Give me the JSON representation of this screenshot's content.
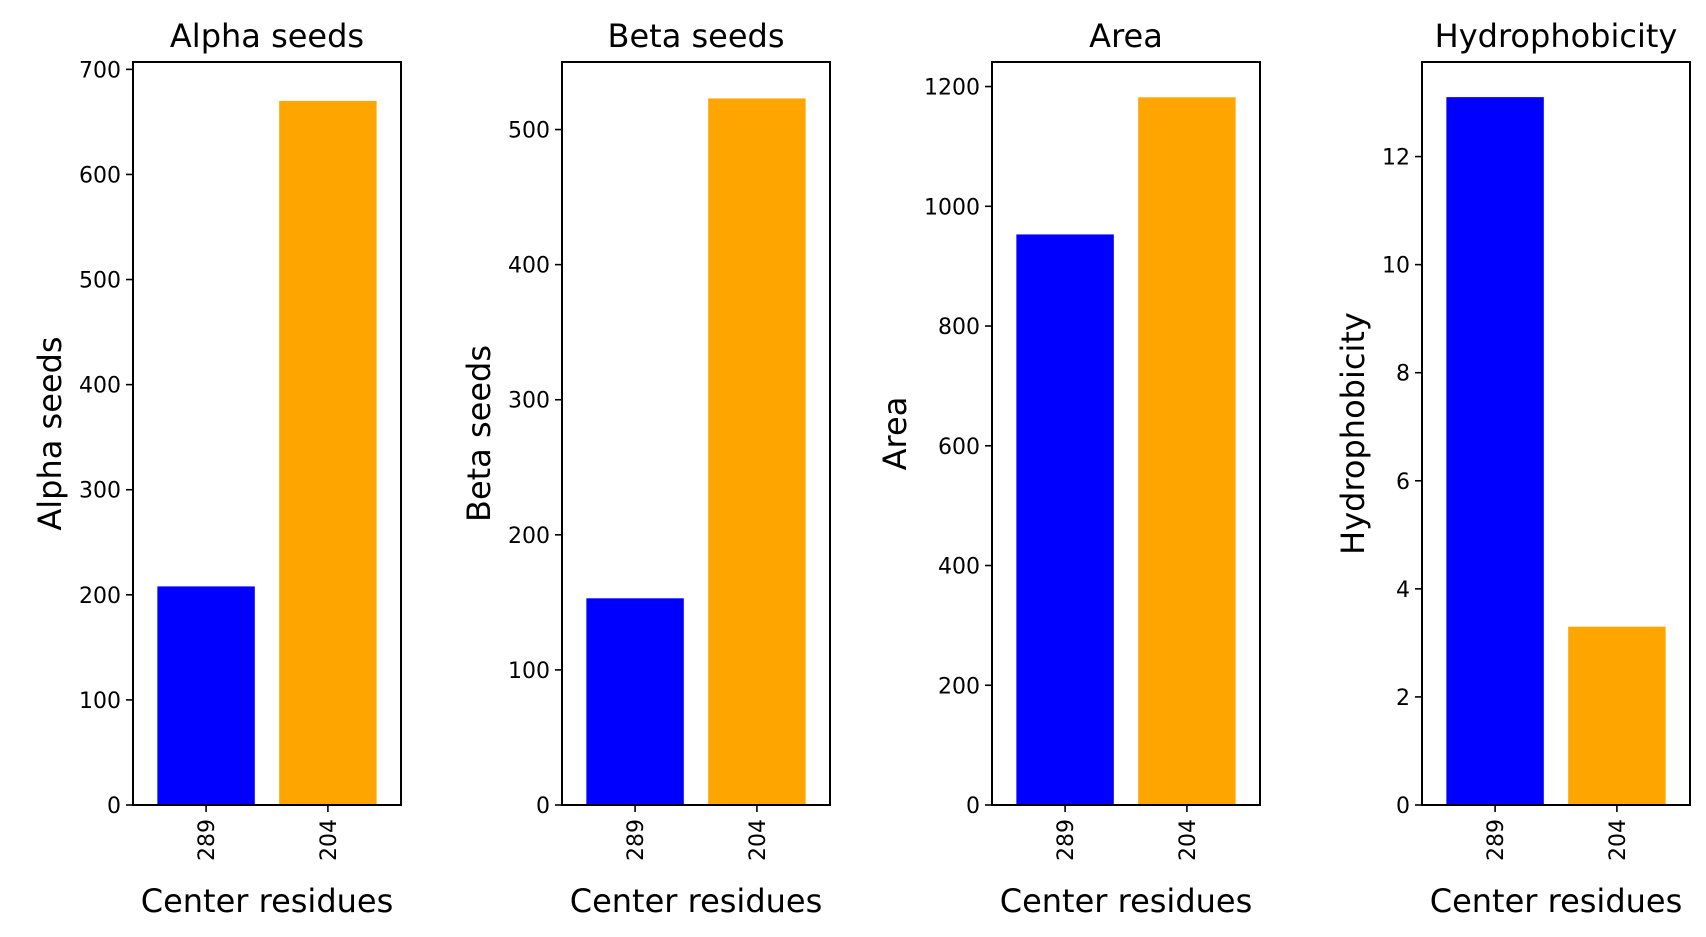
{
  "chart_data": [
    {
      "type": "bar",
      "title": "Alpha seeds",
      "xlabel": "Center residues",
      "ylabel": "Alpha seeds",
      "categories": [
        "289",
        "204"
      ],
      "values": [
        208,
        670
      ],
      "ylim": [
        0,
        707
      ],
      "yticks": [
        0,
        100,
        200,
        300,
        400,
        500,
        600,
        700
      ],
      "bar_colors": [
        "#0000ff",
        "#ffa500"
      ],
      "grid": false
    },
    {
      "type": "bar",
      "title": "Beta seeds",
      "xlabel": "Center residues",
      "ylabel": "Beta seeds",
      "categories": [
        "289",
        "204"
      ],
      "values": [
        153,
        523
      ],
      "ylim": [
        0,
        550
      ],
      "yticks": [
        0,
        100,
        200,
        300,
        400,
        500
      ],
      "bar_colors": [
        "#0000ff",
        "#ffa500"
      ],
      "grid": false
    },
    {
      "type": "bar",
      "title": "Area",
      "xlabel": "Center residues",
      "ylabel": "Area",
      "categories": [
        "289",
        "204"
      ],
      "values": [
        953,
        1182
      ],
      "ylim": [
        0,
        1241
      ],
      "yticks": [
        0,
        200,
        400,
        600,
        800,
        1000,
        1200
      ],
      "bar_colors": [
        "#0000ff",
        "#ffa500"
      ],
      "grid": false
    },
    {
      "type": "bar",
      "title": "Hydrophobicity",
      "xlabel": "Center residues",
      "ylabel": "Hydrophobicity",
      "categories": [
        "289",
        "204"
      ],
      "values": [
        13.1,
        3.3
      ],
      "ylim": [
        0,
        13.75
      ],
      "yticks": [
        0,
        2,
        4,
        6,
        8,
        10,
        12
      ],
      "bar_colors": [
        "#0000ff",
        "#ffa500"
      ],
      "grid": false
    }
  ]
}
